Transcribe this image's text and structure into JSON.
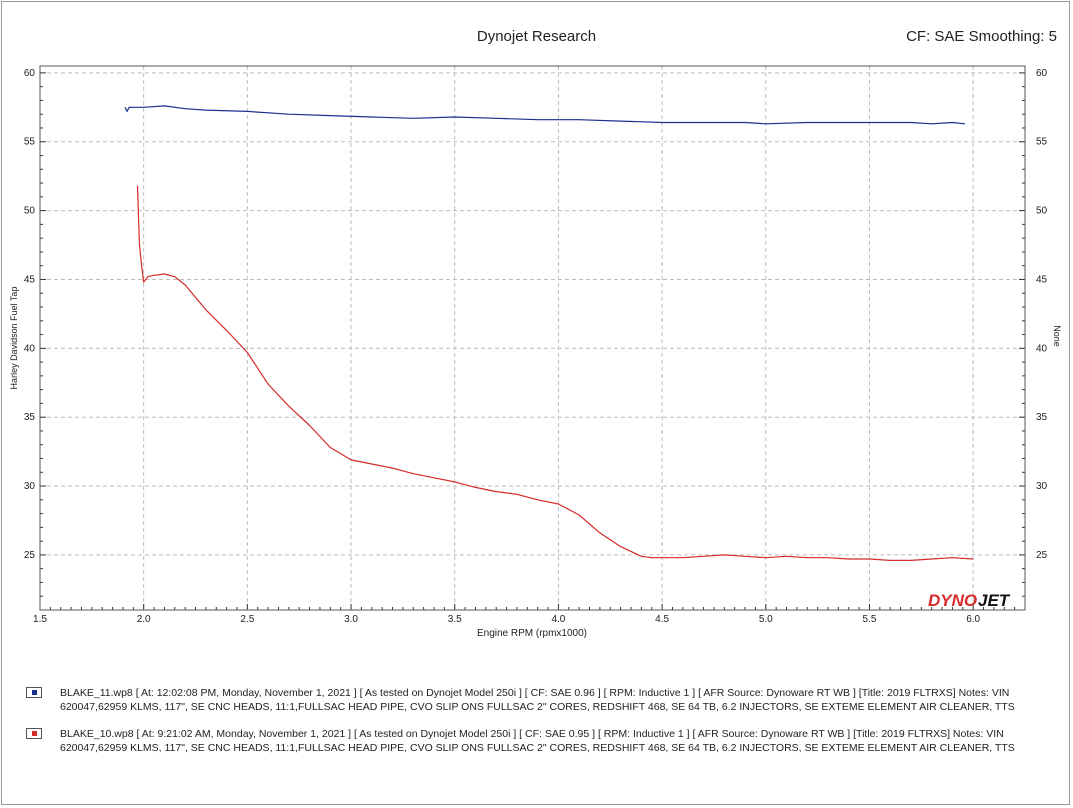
{
  "header": {
    "title": "Dynojet Research",
    "cf_info": "CF: SAE Smoothing: 5"
  },
  "logo": {
    "text_part1": "DYNO",
    "text_part2": "JET"
  },
  "chart_data": {
    "type": "line",
    "xlabel": "Engine RPM (rpmx1000)",
    "ylabel": "Harley Davidson Fuel Tap",
    "ylabel_right": "None",
    "xlim": [
      1.5,
      6.25
    ],
    "ylim": [
      21,
      60.5
    ],
    "x_ticks": [
      "1.5",
      "2.0",
      "2.5",
      "3.0",
      "3.5",
      "4.0",
      "4.5",
      "5.0",
      "5.5",
      "6.0"
    ],
    "y_ticks": [
      "25",
      "30",
      "35",
      "40",
      "45",
      "50",
      "55",
      "60"
    ],
    "grid": true,
    "series": [
      {
        "name": "BLAKE_11.wp8",
        "color": "#1b2f8f",
        "x": [
          1.91,
          1.92,
          1.93,
          1.95,
          2.0,
          2.1,
          2.2,
          2.3,
          2.5,
          2.7,
          2.9,
          3.1,
          3.3,
          3.5,
          3.7,
          3.9,
          4.1,
          4.3,
          4.5,
          4.7,
          4.9,
          5.0,
          5.2,
          5.4,
          5.6,
          5.7,
          5.8,
          5.9,
          5.96
        ],
        "y": [
          57.5,
          57.2,
          57.5,
          57.5,
          57.5,
          57.6,
          57.4,
          57.3,
          57.2,
          57.0,
          56.9,
          56.8,
          56.7,
          56.8,
          56.7,
          56.6,
          56.6,
          56.5,
          56.4,
          56.4,
          56.4,
          56.3,
          56.4,
          56.4,
          56.4,
          56.4,
          56.3,
          56.4,
          56.3
        ]
      },
      {
        "name": "BLAKE_10.wp8",
        "color": "#d42a2a",
        "x": [
          1.97,
          1.975,
          1.98,
          1.99,
          2.0,
          2.02,
          2.05,
          2.1,
          2.15,
          2.2,
          2.3,
          2.4,
          2.5,
          2.6,
          2.7,
          2.8,
          2.9,
          3.0,
          3.1,
          3.2,
          3.3,
          3.4,
          3.5,
          3.6,
          3.7,
          3.8,
          3.9,
          4.0,
          4.1,
          4.2,
          4.3,
          4.4,
          4.45,
          4.5,
          4.6,
          4.7,
          4.8,
          4.9,
          5.0,
          5.1,
          5.2,
          5.3,
          5.4,
          5.5,
          5.6,
          5.7,
          5.8,
          5.9,
          6.0
        ],
        "y": [
          51.8,
          49.5,
          47.5,
          46.0,
          44.8,
          45.2,
          45.3,
          45.4,
          45.2,
          44.6,
          42.8,
          41.3,
          39.7,
          37.4,
          35.8,
          34.4,
          32.8,
          31.9,
          31.6,
          31.3,
          30.9,
          30.6,
          30.3,
          29.9,
          29.6,
          29.4,
          29.0,
          28.7,
          27.9,
          26.6,
          25.6,
          24.9,
          24.8,
          24.8,
          24.8,
          24.9,
          25.0,
          24.9,
          24.8,
          24.9,
          24.8,
          24.8,
          24.7,
          24.7,
          24.6,
          24.6,
          24.7,
          24.8,
          24.7
        ]
      }
    ]
  },
  "legend": [
    {
      "color": "#1b2f8f",
      "text": "BLAKE_11.wp8 [ At: 12:02:08 PM, Monday, November 1, 2021 ] [ As tested on Dynojet Model 250i ] [ CF: SAE 0.96 ] [ RPM: Inductive 1 ] [ AFR Source: Dynoware RT WB ] [Title: 2019 FLTRXS] Notes: VIN 620047,62959 KLMS, 117\", SE CNC HEADS, 11:1,FULLSAC HEAD PIPE, CVO SLIP ONS FULLSAC 2\" CORES, REDSHIFT 468, SE 64 TB, 6.2 INJECTORS, SE EXTEME ELEMENT AIR CLEANER, TTS"
    },
    {
      "color": "#d42a2a",
      "text": "BLAKE_10.wp8 [ At: 9:21:02 AM, Monday, November 1, 2021 ] [ As tested on Dynojet Model 250i ] [ CF: SAE 0.95 ] [ RPM: Inductive 1 ] [ AFR Source: Dynoware RT WB ] [Title: 2019 FLTRXS] Notes: VIN 620047,62959 KLMS, 117\", SE CNC HEADS, 11:1,FULLSAC HEAD PIPE, CVO SLIP ONS FULLSAC 2\" CORES, REDSHIFT 468, SE 64 TB, 6.2 INJECTORS, SE EXTEME ELEMENT AIR CLEANER, TTS"
    }
  ]
}
